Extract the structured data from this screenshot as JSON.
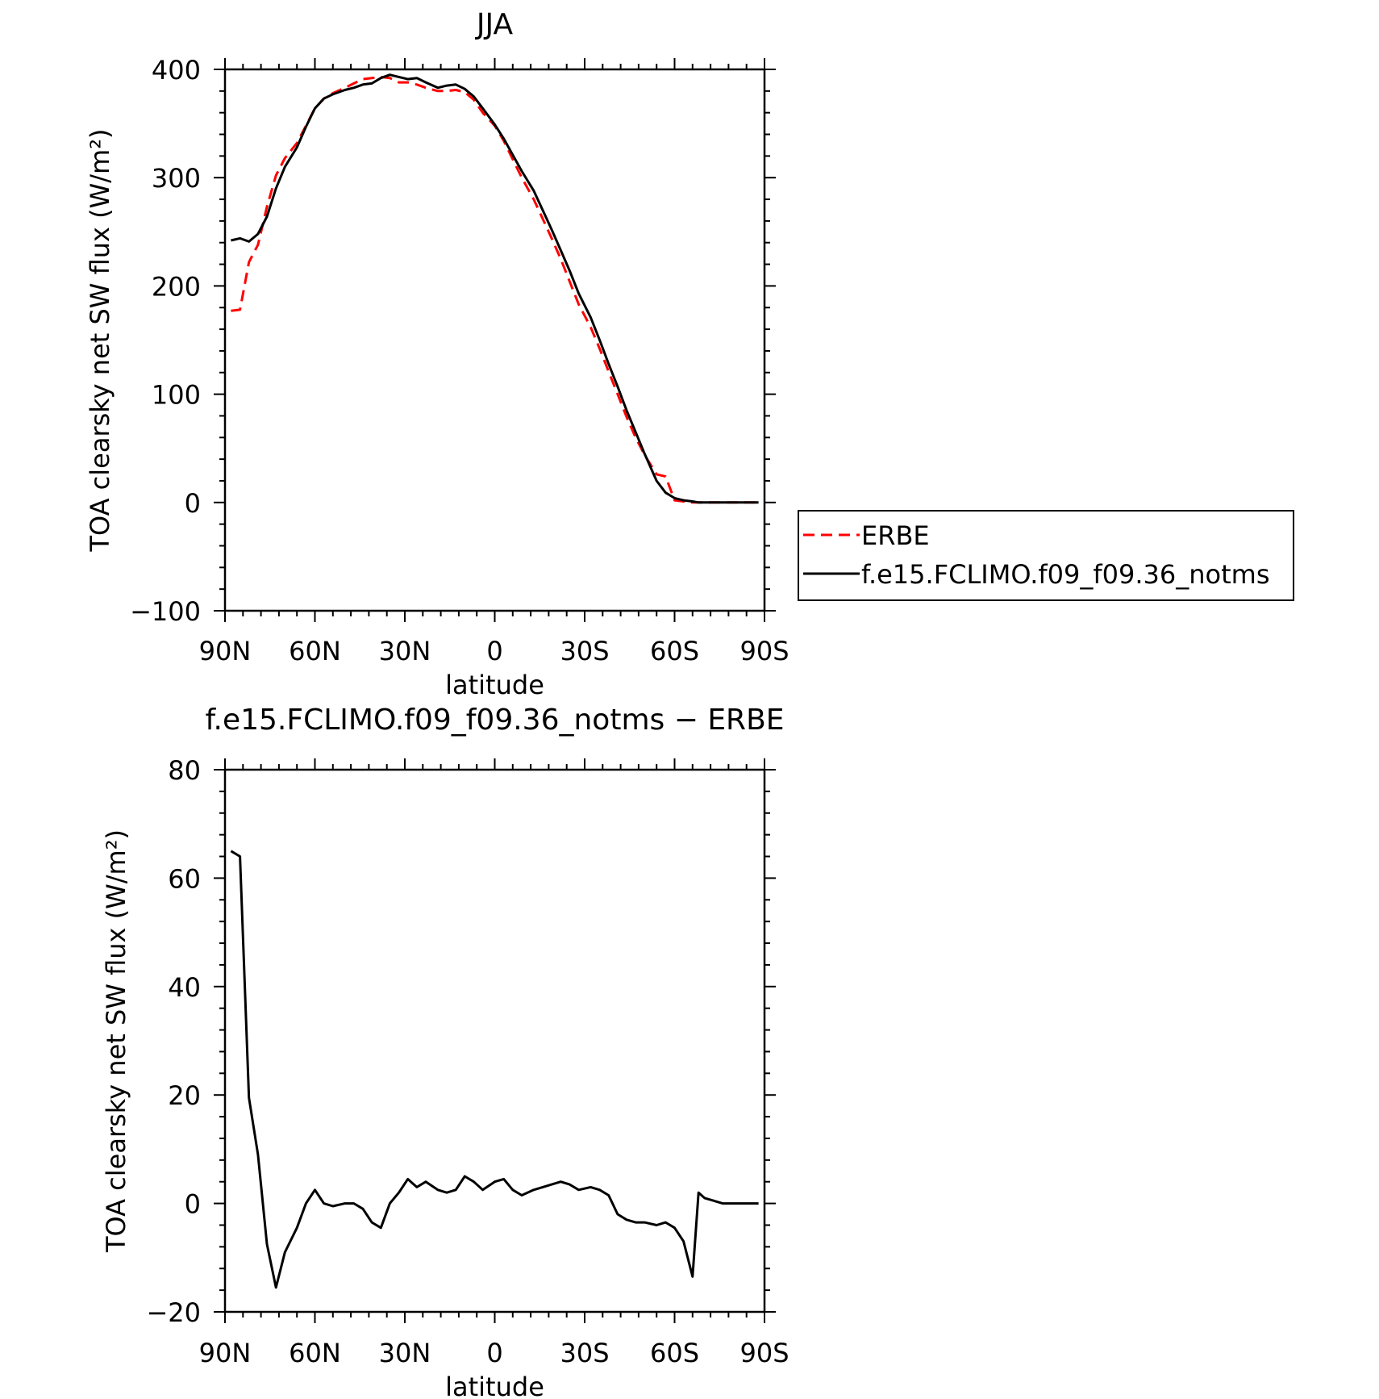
{
  "chart_data": [
    {
      "type": "line",
      "title": "JJA",
      "xlabel": "latitude",
      "ylabel": "TOA clearsky net SW flux (W/m²)",
      "xlim": [
        90,
        -90
      ],
      "ylim": [
        -100,
        400
      ],
      "x_ticks": [
        90,
        60,
        30,
        0,
        -30,
        -60,
        -90
      ],
      "x_tick_labels": [
        "90N",
        "60N",
        "30N",
        "0",
        "30S",
        "60S",
        "90S"
      ],
      "y_ticks": [
        -100,
        0,
        100,
        200,
        300,
        400
      ],
      "y_tick_labels": [
        "−100",
        "0",
        "100",
        "200",
        "300",
        "400"
      ],
      "legend": {
        "placement": "right, outside plot"
      },
      "series": [
        {
          "name": "ERBE",
          "color": "#ff0000",
          "style": "dashed",
          "x": [
            88,
            85,
            82,
            79,
            76,
            73,
            70,
            66,
            63,
            60,
            57,
            54,
            50,
            47,
            44,
            41,
            38,
            35,
            32,
            29,
            26,
            23,
            19,
            16,
            13,
            10,
            7,
            4,
            0,
            -3,
            -6,
            -9,
            -13,
            -16,
            -19,
            -22,
            -25,
            -28,
            -32,
            -35,
            -38,
            -41,
            -44,
            -47,
            -50,
            -54,
            -57,
            -60,
            -63,
            -66,
            -68,
            -70,
            -73,
            -76,
            -79,
            -82,
            -85,
            -88
          ],
          "y": [
            177,
            178,
            222,
            238,
            273,
            302,
            318,
            332,
            348,
            364,
            373,
            378,
            383,
            387,
            391,
            392,
            393,
            392,
            388,
            388,
            386,
            383,
            380,
            380,
            381,
            379,
            372,
            360,
            348,
            334,
            317,
            300,
            280,
            262,
            244,
            225,
            204,
            183,
            162,
            142,
            121,
            100,
            79,
            60,
            44,
            26,
            24,
            2,
            1,
            0,
            0,
            0,
            0,
            0,
            0,
            0,
            0,
            0
          ]
        },
        {
          "name": "f.e15.FCLIMO.f09_f09.36_notms",
          "color": "#000000",
          "style": "solid",
          "x": [
            88,
            85,
            82,
            79,
            76,
            73,
            70,
            66,
            63,
            60,
            57,
            54,
            50,
            47,
            44,
            41,
            38,
            35,
            32,
            29,
            26,
            23,
            19,
            16,
            13,
            10,
            7,
            4,
            0,
            -3,
            -6,
            -9,
            -13,
            -16,
            -19,
            -22,
            -25,
            -28,
            -32,
            -35,
            -38,
            -41,
            -44,
            -47,
            -50,
            -54,
            -57,
            -60,
            -63,
            -66,
            -68,
            -70,
            -73,
            -76,
            -79,
            -82,
            -85,
            -88
          ],
          "y": [
            242,
            244,
            241,
            248,
            264,
            290,
            310,
            328,
            347,
            364,
            373,
            377,
            381,
            383,
            386,
            387,
            392,
            395,
            393,
            391,
            392,
            388,
            383,
            385,
            386,
            382,
            375,
            364,
            349,
            336,
            321,
            306,
            288,
            270,
            252,
            233,
            214,
            193,
            171,
            150,
            128,
            107,
            85,
            65,
            45,
            20,
            9,
            4,
            2,
            1,
            0,
            0,
            0,
            0,
            0,
            0,
            0,
            0
          ]
        }
      ]
    },
    {
      "type": "line",
      "title": "f.e15.FCLIMO.f09_f09.36_notms − ERBE",
      "xlabel": "latitude",
      "ylabel": "TOA clearsky net SW flux (W/m²)",
      "xlim": [
        90,
        -90
      ],
      "ylim": [
        -20,
        80
      ],
      "x_ticks": [
        90,
        60,
        30,
        0,
        -30,
        -60,
        -90
      ],
      "x_tick_labels": [
        "90N",
        "60N",
        "30N",
        "0",
        "30S",
        "60S",
        "90S"
      ],
      "y_ticks": [
        -20,
        0,
        20,
        40,
        60,
        80
      ],
      "y_tick_labels": [
        "−20",
        "0",
        "20",
        "40",
        "60",
        "80"
      ],
      "series": [
        {
          "color": "#000000",
          "style": "solid",
          "x": [
            88,
            85,
            82,
            79,
            76,
            73,
            70,
            66,
            63,
            60,
            57,
            54,
            50,
            47,
            44,
            41,
            38,
            35,
            32,
            29,
            26,
            23,
            19,
            16,
            13,
            10,
            7,
            4,
            0,
            -3,
            -6,
            -9,
            -13,
            -16,
            -19,
            -22,
            -25,
            -28,
            -32,
            -35,
            -38,
            -41,
            -44,
            -47,
            -50,
            -54,
            -57,
            -60,
            -63,
            -66,
            -68,
            -70,
            -73,
            -76,
            -79,
            -82,
            -85,
            -88
          ],
          "y": [
            65,
            64,
            19.5,
            9,
            -7.5,
            -15.5,
            -9,
            -4.5,
            0,
            2.5,
            0,
            -0.5,
            0,
            0,
            -1,
            -3.5,
            -4.5,
            0,
            2,
            4.5,
            3,
            4,
            2.5,
            2,
            2.5,
            5,
            4,
            2.5,
            4,
            4.5,
            2.5,
            1.5,
            2.5,
            3,
            3.5,
            4,
            3.5,
            2.5,
            3,
            2.5,
            1.5,
            -2,
            -3,
            -3.5,
            -3.5,
            -4,
            -3.5,
            -4.5,
            -7,
            -13.5,
            2,
            1,
            0.5,
            0,
            0,
            0,
            0,
            0
          ]
        }
      ]
    }
  ]
}
